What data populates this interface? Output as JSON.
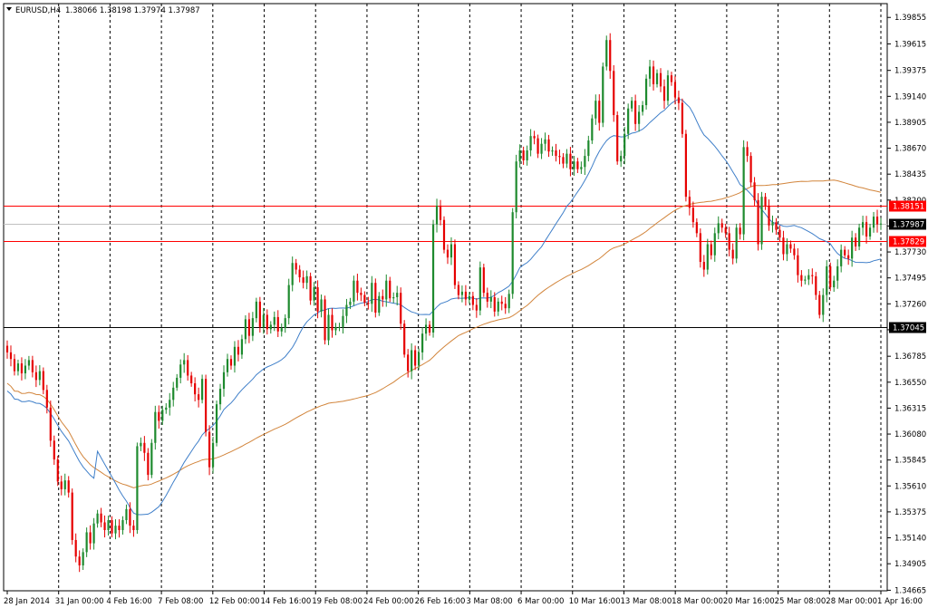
{
  "header": {
    "symbol": "EURUSD,H4",
    "ohlc": "1.38066 1.38198 1.37974 1.37987"
  },
  "chart_data": {
    "type": "candlestick",
    "ylim": [
      1.3466,
      1.3998
    ],
    "y_ticks": [
      "1.39855",
      "1.39615",
      "1.39375",
      "1.39140",
      "1.38905",
      "1.38670",
      "1.38435",
      "1.38200",
      "1.37965",
      "1.37730",
      "1.37495",
      "1.37260",
      "1.37025",
      "1.36785",
      "1.36550",
      "1.36315",
      "1.36080",
      "1.35845",
      "1.35610",
      "1.35375",
      "1.35140",
      "1.34905",
      "1.34665"
    ],
    "x_ticks": [
      "28 Jan 2014",
      "31 Jan 00:00",
      "4 Feb 16:00",
      "7 Feb 08:00",
      "12 Feb 00:00",
      "14 Feb 16:00",
      "19 Feb 08:00",
      "24 Feb 00:00",
      "26 Feb 16:00",
      "3 Mar 08:00",
      "6 Mar 00:00",
      "10 Mar 16:00",
      "13 Mar 08:00",
      "18 Mar 00:00",
      "20 Mar 16:00",
      "25 Mar 08:00",
      "28 Mar 00:00",
      "1 Apr 16:00"
    ],
    "price_lines": [
      {
        "label": "1.38151",
        "value": 1.38151,
        "color": "#ff0000",
        "boxed": true
      },
      {
        "label": "1.37987",
        "value": 1.37987,
        "color": "#c0c0c0",
        "boxed": true,
        "box_color": "#000000"
      },
      {
        "label": "1.37829",
        "value": 1.37829,
        "color": "#ff0000",
        "boxed": true
      },
      {
        "label": "1.37045",
        "value": 1.37045,
        "color": "#000000",
        "boxed": true
      }
    ],
    "closes": [
      1.3682,
      1.3676,
      1.3665,
      1.3672,
      1.3663,
      1.367,
      1.3675,
      1.3664,
      1.3657,
      1.3665,
      1.3648,
      1.3632,
      1.3602,
      1.3585,
      1.3565,
      1.3558,
      1.3566,
      1.3555,
      1.3512,
      1.3497,
      1.3489,
      1.3501,
      1.3519,
      1.3509,
      1.3527,
      1.3536,
      1.3528,
      1.3521,
      1.353,
      1.3518,
      1.3525,
      1.3521,
      1.353,
      1.354,
      1.3525,
      1.3521,
      1.3597,
      1.36,
      1.3591,
      1.3571,
      1.36,
      1.3628,
      1.362,
      1.363,
      1.3632,
      1.3639,
      1.365,
      1.3659,
      1.3671,
      1.3675,
      1.3661,
      1.3654,
      1.3644,
      1.3639,
      1.3658,
      1.361,
      1.3578,
      1.36,
      1.3635,
      1.3649,
      1.3664,
      1.3676,
      1.367,
      1.3687,
      1.368,
      1.3694,
      1.3712,
      1.3697,
      1.3713,
      1.3728,
      1.3705,
      1.3716,
      1.3703,
      1.3707,
      1.3714,
      1.3701,
      1.3704,
      1.3713,
      1.3743,
      1.3763,
      1.3757,
      1.375,
      1.3745,
      1.3751,
      1.3729,
      1.3741,
      1.3719,
      1.373,
      1.3693,
      1.3716,
      1.3702,
      1.3705,
      1.3705,
      1.3715,
      1.3725,
      1.3728,
      1.3747,
      1.3736,
      1.3734,
      1.3727,
      1.3726,
      1.3745,
      1.3718,
      1.3733,
      1.373,
      1.3747,
      1.3731,
      1.3732,
      1.3736,
      1.3708,
      1.368,
      1.3665,
      1.3684,
      1.367,
      1.3682,
      1.3699,
      1.3707,
      1.37,
      1.3798,
      1.3815,
      1.3802,
      1.3775,
      1.3768,
      1.378,
      1.3743,
      1.3734,
      1.3737,
      1.373,
      1.3733,
      1.3725,
      1.372,
      1.3759,
      1.3736,
      1.3728,
      1.3732,
      1.3719,
      1.3728,
      1.3726,
      1.3722,
      1.3735,
      1.3809,
      1.3855,
      1.3865,
      1.3856,
      1.3865,
      1.3878,
      1.3876,
      1.3862,
      1.3871,
      1.3875,
      1.3864,
      1.3865,
      1.386,
      1.3859,
      1.3853,
      1.3862,
      1.3848,
      1.3855,
      1.3848,
      1.385,
      1.386,
      1.3874,
      1.3894,
      1.391,
      1.389,
      1.3941,
      1.3965,
      1.3937,
      1.3897,
      1.3855,
      1.386,
      1.388,
      1.3903,
      1.391,
      1.3889,
      1.39,
      1.3906,
      1.393,
      1.3941,
      1.3925,
      1.3935,
      1.3923,
      1.391,
      1.3933,
      1.3927,
      1.3913,
      1.3908,
      1.388,
      1.3823,
      1.3813,
      1.38,
      1.379,
      1.3764,
      1.3757,
      1.378,
      1.377,
      1.379,
      1.3799,
      1.3795,
      1.379,
      1.3775,
      1.3767,
      1.3795,
      1.3789,
      1.3868,
      1.386,
      1.3836,
      1.382,
      1.378,
      1.3823,
      1.3815,
      1.3797,
      1.38,
      1.3793,
      1.3786,
      1.3771,
      1.378,
      1.3776,
      1.377,
      1.3752,
      1.3747,
      1.3748,
      1.3752,
      1.3751,
      1.3734,
      1.3716,
      1.3734,
      1.376,
      1.3741,
      1.3747,
      1.376,
      1.3775,
      1.377,
      1.3767,
      1.3786,
      1.3778,
      1.3795,
      1.38,
      1.3787,
      1.3795,
      1.3805,
      1.3798,
      1.37987
    ],
    "ma_slow": {
      "name": "",
      "color": "#d2853c"
    },
    "ma_fast": {
      "name": "",
      "color": "#3f7fc9"
    }
  }
}
